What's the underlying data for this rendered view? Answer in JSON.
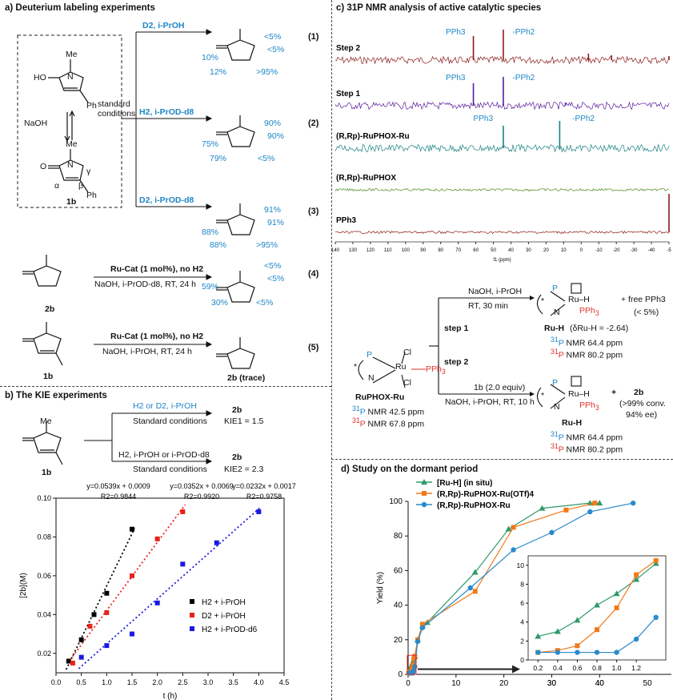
{
  "panel_a": {
    "title": "a) Deuterium labeling experiments",
    "substrate": {
      "me": "Me",
      "ho": "HO",
      "n": "N",
      "ph": "Ph",
      "naoh": "NaOH",
      "compound": "1b",
      "alpha": "α",
      "beta": "β",
      "gamma": "γ",
      "o": "O"
    },
    "standard_conditions": [
      "standard",
      "conditions"
    ],
    "reactions": [
      {
        "label": "D2, i-PrOH",
        "num": "(1)",
        "top1": "<5%",
        "top2": "<5%",
        "left1": "10%",
        "left2": "12%",
        "right": ">95%"
      },
      {
        "label": "H2, i-PrOD-d8",
        "num": "(2)",
        "top1": "90%",
        "top2": "90%",
        "left1": "75%",
        "left2": "79%",
        "right": "<5%"
      },
      {
        "label": "D2, i-PrOD-d8",
        "num": "(3)",
        "top1": "91%",
        "top2": "91%",
        "left1": "88%",
        "left2": "88%",
        "right": ">95%"
      }
    ],
    "rxn4": {
      "substrate": "2b",
      "cond1": "Ru-Cat (1 mol%), no H2",
      "cond2": "NaOH, i-PrOD-d8, RT, 24 h",
      "num": "(4)",
      "top1": "<5%",
      "top2": "<5%",
      "left1": "59%",
      "left2": "30%",
      "right": "<5%"
    },
    "rxn5": {
      "substrate": "1b",
      "cond1": "Ru-Cat (1 mol%), no H2",
      "cond2": "NaOH, i-PrOH, RT, 24 h",
      "num": "(5)",
      "product": "2b (trace)"
    }
  },
  "panel_b": {
    "title": "b) The KIE experiments",
    "substrate": "1b",
    "cond_top": "H2 or D2, i-PrOH",
    "cond_top2": "Standard conditions",
    "cond_bot": "H2, i-PrOH or i-PrOD-d8",
    "cond_bot2": "Standard conditions",
    "prod_top": "2b",
    "kie1": "KIE1 = 1.5",
    "prod_bot": "2b",
    "kie2": "KIE2 = 2.3"
  },
  "chart_b": {
    "type": "scatter",
    "xlabel": "t (h)",
    "ylabel": "[2b](M)",
    "xlim": [
      0.0,
      4.5
    ],
    "ylim": [
      0.01,
      0.1
    ],
    "xticks": [
      "0.0",
      "0.5",
      "1.0",
      "1.5",
      "2.0",
      "2.5",
      "3.0",
      "3.5",
      "4.0",
      "4.5"
    ],
    "yticks": [
      "0.02",
      "0.04",
      "0.06",
      "0.08",
      "0.10"
    ],
    "series": [
      {
        "name": "H2 + i-PrOH",
        "color": "#000000",
        "x": [
          0.25,
          0.5,
          0.75,
          1.0,
          1.5
        ],
        "y": [
          0.016,
          0.027,
          0.04,
          0.051,
          0.084
        ],
        "fit": "y=0.0539x + 0.0009",
        "r2": "R2=0.9844"
      },
      {
        "name": "D2 + i-PrOH",
        "color": "#e8221c",
        "x": [
          0.33,
          0.67,
          1.0,
          1.5,
          2.0,
          2.5
        ],
        "y": [
          0.015,
          0.034,
          0.041,
          0.06,
          0.079,
          0.093
        ],
        "fit": "y=0.0352x + 0.0069",
        "r2": "R2=0.9920"
      },
      {
        "name": "H2 + i-PrOD-d6",
        "color": "#1a1ae0",
        "x": [
          0.5,
          1.0,
          1.5,
          2.0,
          2.5,
          3.17,
          4.0
        ],
        "y": [
          0.018,
          0.024,
          0.03,
          0.046,
          0.066,
          0.077,
          0.093
        ],
        "fit": "y=0.0232x + 0.0017",
        "r2": "R2=0.9758"
      }
    ]
  },
  "panel_c": {
    "title": "c) 31P NMR analysis of active catalytic species",
    "spectra": [
      {
        "name": "Step 2",
        "color": "#8b1a1a",
        "peaks": [
          "PPh3",
          "-PPh2"
        ]
      },
      {
        "name": "Step 1",
        "color": "#5a1a9a",
        "peaks": [
          "PPh3",
          "-PPh2",
          "<5%"
        ]
      },
      {
        "name": "(R,Rp)-RuPHOX-Ru",
        "color": "#1a8080",
        "peaks": [
          "PPh3",
          "-PPh2"
        ]
      },
      {
        "name": "(R,Rp)-RuPHOX",
        "color": "#4a8a1a",
        "peaks": []
      },
      {
        "name": "PPh3",
        "color": "#8b1a1a",
        "peaks": []
      }
    ],
    "axis_ticks": [
      "140",
      "130",
      "120",
      "110",
      "100",
      "90",
      "80",
      "70",
      "60",
      "50",
      "40",
      "30",
      "20",
      "10",
      "0",
      "-10",
      "-20",
      "-30",
      "-40",
      "-5"
    ],
    "axis_label": "f1 (ppm)",
    "complex": {
      "name": "RuPHOX-Ru",
      "nmr1": "NMR 42.5 ppm",
      "nmr2": "NMR 67.8 ppm"
    },
    "step1": {
      "cond1": "NaOH, i-PrOH",
      "cond2": "RT, 30 min",
      "label": "step 1",
      "prod": "Ru-H",
      "delta": "(δRu-H = -2.64)",
      "nmr1": "NMR 64.4 ppm",
      "nmr2": "NMR 80.2 ppm",
      "extra1": "+   free PPh3",
      "extra2": "(< 5%)"
    },
    "step2": {
      "label": "step 2",
      "cond1": "1b (2.0 equiv)",
      "cond2": "NaOH, i-PrOH, RT, 10 h",
      "prod": "Ru-H",
      "nmr1": "NMR 64.4 ppm",
      "nmr2": "NMR 80.2 ppm",
      "extra1": "2b",
      "extra2": "(>99% conv.",
      "extra3": "94% ee)"
    }
  },
  "panel_d": {
    "title": "d) Study on the dormant period"
  },
  "chart_d": {
    "type": "line",
    "ylabel": "Yield (%)",
    "xlim": [
      0,
      55
    ],
    "ylim": [
      0,
      100
    ],
    "xticks": [
      "0",
      "10",
      "20",
      "30",
      "40"
    ],
    "yticks": [
      "0",
      "20",
      "40",
      "60",
      "80",
      "100"
    ],
    "series": [
      {
        "name": "[Ru-H] (in situ)",
        "color": "#2e9a6a",
        "marker": "triangle",
        "x": [
          0.2,
          0.4,
          0.6,
          0.8,
          1.0,
          1.2,
          1.4,
          2,
          3,
          4,
          14,
          21,
          28,
          38,
          40
        ],
        "y": [
          2.5,
          3.0,
          4.2,
          5.8,
          7.0,
          8.5,
          10.2,
          20,
          28,
          30,
          59,
          84,
          96,
          99,
          99
        ]
      },
      {
        "name": "(R,Rp)-RuPHOX-Ru(OTf)4",
        "color": "#f07a1a",
        "marker": "square",
        "x": [
          0.2,
          0.4,
          0.6,
          0.8,
          1.0,
          1.2,
          1.4,
          2,
          3,
          14,
          22,
          33,
          39
        ],
        "y": [
          0.8,
          1.0,
          1.5,
          3.2,
          5.5,
          9.0,
          10.5,
          20,
          29,
          48,
          85,
          95,
          99
        ]
      },
      {
        "name": "(R,Rp)-RuPHOX-Ru",
        "color": "#2a8acc",
        "marker": "circle",
        "x": [
          0.2,
          0.4,
          0.6,
          0.8,
          1.0,
          1.2,
          1.4,
          2,
          3,
          13,
          22,
          30,
          38,
          47
        ],
        "y": [
          0.8,
          0.8,
          0.8,
          0.8,
          0.8,
          2.2,
          4.5,
          19,
          27,
          50,
          72,
          82,
          94,
          99
        ]
      }
    ],
    "inset_xticks": [
      "0.2",
      "0.4",
      "0.6",
      "0.8",
      "1.0",
      "1.2"
    ],
    "inset_yticks": [
      "0",
      "2",
      "4",
      "6",
      "8",
      "10"
    ],
    "inset_xticks_extra": [
      "30",
      "40",
      "50"
    ]
  }
}
